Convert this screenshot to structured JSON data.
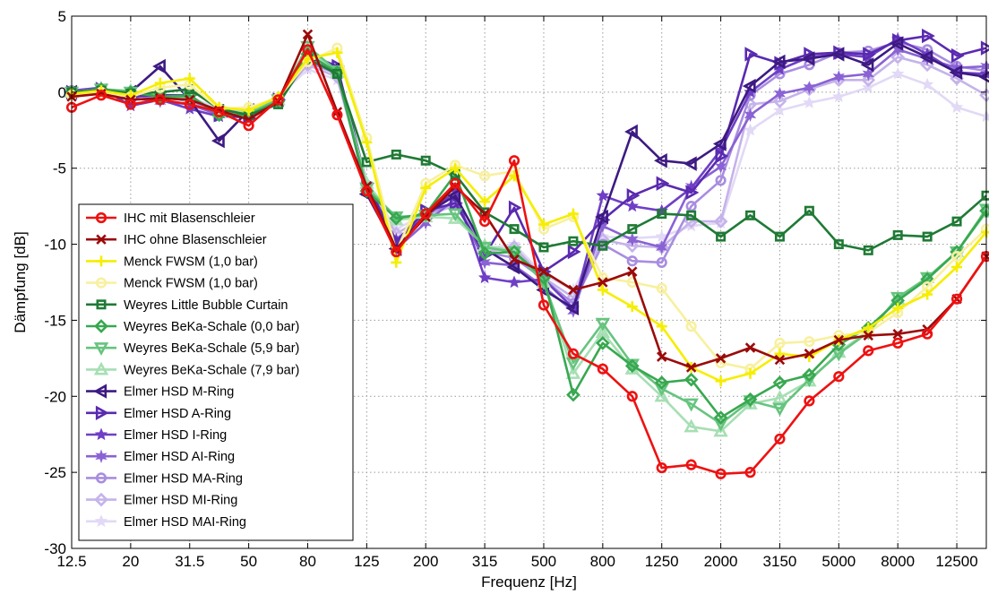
{
  "chart_data": {
    "type": "line",
    "xlabel": "Frequenz [Hz]",
    "ylabel": "Dämpfung [dB]",
    "ylim": [
      -30,
      5
    ],
    "y_ticks": [
      "5",
      "0",
      "-5",
      "-10",
      "-15",
      "-20",
      "-25",
      "-30"
    ],
    "y_tick_values": [
      5,
      0,
      -5,
      -10,
      -15,
      -20,
      -25,
      -30
    ],
    "categories": [
      "12.5",
      "16",
      "20",
      "25",
      "31.5",
      "40",
      "50",
      "63",
      "80",
      "100",
      "125",
      "160",
      "200",
      "250",
      "315",
      "400",
      "500",
      "630",
      "800",
      "1000",
      "1250",
      "1600",
      "2000",
      "2500",
      "3150",
      "4000",
      "5000",
      "6300",
      "8000",
      "10000",
      "12500",
      "16000"
    ],
    "x_tick_labels": [
      "12.5",
      "20",
      "31.5",
      "50",
      "80",
      "125",
      "200",
      "315",
      "500",
      "800",
      "1250",
      "2000",
      "3150",
      "5000",
      "8000",
      "12500"
    ],
    "x_tick_indices": [
      0,
      2,
      4,
      6,
      8,
      10,
      12,
      14,
      16,
      18,
      20,
      22,
      24,
      26,
      28,
      30
    ],
    "grid": true,
    "legend_position": "left-middle",
    "series": [
      {
        "name": "IHC mit Blasenschleier",
        "color": "#ee1111",
        "marker": "circle",
        "values": [
          -1,
          -0.2,
          -0.8,
          -0.5,
          -0.8,
          -1.3,
          -2.2,
          -0.5,
          2.8,
          -1.5,
          -6.5,
          -10.5,
          -8,
          -6,
          -8.5,
          -4.5,
          -14,
          -17.2,
          -18.2,
          -20,
          -24.7,
          -24.5,
          -25.1,
          -25,
          -22.8,
          -20.3,
          -18.7,
          -17,
          -16.5,
          -15.9,
          -13.6,
          -10.8
        ]
      },
      {
        "name": "IHC ohne Blasenschleier",
        "color": "#9b0a0a",
        "marker": "x",
        "values": [
          -0.3,
          -0.1,
          -0.5,
          -0.4,
          -0.5,
          -1.2,
          -1.8,
          -0.6,
          3.8,
          -1.3,
          -6.2,
          -10.3,
          -8.2,
          -6.2,
          -8,
          -11,
          -11.8,
          -13,
          -12.5,
          -11.8,
          -17.4,
          -18.1,
          -17.5,
          -16.8,
          -17.6,
          -17.2,
          -16.3,
          -16,
          -15.9,
          -15.6,
          -13.6,
          -10.8
        ]
      },
      {
        "name": "Menck FWSM (1,0 bar)",
        "color": "#f5ee00",
        "marker": "plus",
        "values": [
          -0.1,
          0.1,
          -0.2,
          0.6,
          0.9,
          -1,
          -1.2,
          -0.3,
          2.2,
          2.6,
          -3.3,
          -11.2,
          -6.3,
          -5,
          -7.2,
          -5.5,
          -8.7,
          -8,
          -13,
          -14.1,
          -15.4,
          -18.1,
          -19,
          -18.5,
          -17.2,
          -17.4,
          -16.3,
          -15.5,
          -14.2,
          -13.3,
          -11.5,
          -9.2
        ]
      },
      {
        "name": "Menck FWSM (1,0 bar)",
        "color": "#f8f0a0",
        "marker": "circle",
        "values": [
          -0.2,
          0,
          -0.3,
          0.3,
          0.5,
          -1.1,
          -1,
          -0.4,
          2,
          2.9,
          -3,
          -10.5,
          -6,
          -4.8,
          -5.5,
          -5.2,
          -9,
          -8.2,
          -12.2,
          -12.5,
          -12.9,
          -15.4,
          -17.8,
          -18.2,
          -16.5,
          -16.4,
          -16,
          -15.8,
          -14.5,
          -12.8,
          -10.8,
          -9
        ]
      },
      {
        "name": "Weyres Little Bubble Curtain",
        "color": "#1f7a35",
        "marker": "square",
        "values": [
          0,
          0.1,
          -0.1,
          0,
          0.2,
          -1.1,
          -1.5,
          -0.8,
          2.2,
          1.2,
          -4.6,
          -4.1,
          -4.5,
          -5.4,
          -7.9,
          -9,
          -10.2,
          -9.8,
          -10.1,
          -9,
          -8,
          -8.1,
          -9.5,
          -8.1,
          -9.5,
          -7.8,
          -10,
          -10.4,
          -9.4,
          -9.5,
          -8.5,
          -6.8
        ]
      },
      {
        "name": "Weyres BeKa-Schale (0,0 bar)",
        "color": "#38a850",
        "marker": "diamond",
        "values": [
          0,
          0.2,
          0,
          -0.3,
          -0.2,
          -1.5,
          -1.5,
          -0.6,
          2.5,
          1.3,
          -6.5,
          -8.3,
          -8,
          -5.4,
          -10.6,
          -10.5,
          -12.2,
          -19.9,
          -16.5,
          -18,
          -19.1,
          -18.9,
          -21.4,
          -20.2,
          -19.1,
          -18.6,
          -16.6,
          -15.5,
          -13.7,
          -12.3,
          -10.5,
          -7.8
        ]
      },
      {
        "name": "Weyres BeKa-Schale (5,9 bar)",
        "color": "#66c47e",
        "marker": "triangle-down",
        "values": [
          0,
          0.2,
          0,
          -0.3,
          -0.3,
          -1.4,
          -1.4,
          -0.5,
          3,
          1.4,
          -6.3,
          -8.2,
          -8.1,
          -8,
          -10.2,
          -10.5,
          -12.5,
          -17.8,
          -15.2,
          -17.9,
          -19.5,
          -20.5,
          -21.8,
          -20.3,
          -20.8,
          -18.9,
          -17.2,
          -15.8,
          -13.5,
          -12.2,
          -10.5,
          -7.7
        ]
      },
      {
        "name": "Weyres BeKa-Schale (7,9 bar)",
        "color": "#a6dfb3",
        "marker": "triangle-up",
        "values": [
          0,
          0.2,
          0.1,
          -0.3,
          -0.3,
          -1.3,
          -1.3,
          -0.5,
          2.8,
          1.3,
          -6,
          -8.4,
          -8.2,
          -8.3,
          -10.1,
          -10.4,
          -12.5,
          -18.5,
          -15.8,
          -18.2,
          -20,
          -22,
          -22.3,
          -20.5,
          -20.1,
          -19,
          -17.1,
          -15.7,
          -13.6,
          -12.2,
          -10.5,
          -7.9
        ]
      },
      {
        "name": "Elmer HSD M-Ring",
        "color": "#3d1a82",
        "marker": "triangle-left",
        "values": [
          0,
          0.1,
          0,
          1.7,
          -0.5,
          -3.2,
          -1.2,
          -0.5,
          2.3,
          1.6,
          -6.7,
          -10.3,
          -8,
          -6.8,
          -10.3,
          -11.5,
          -13,
          -14.2,
          -8.2,
          -2.6,
          -4.5,
          -4.7,
          -3.4,
          0.4,
          2,
          2.2,
          2.5,
          1.8,
          3.2,
          2.3,
          1.3,
          1
        ]
      },
      {
        "name": "Elmer HSD A-Ring",
        "color": "#5a2ab0",
        "marker": "triangle-right",
        "values": [
          0,
          0.2,
          -0.3,
          -0.2,
          -0.2,
          -1.5,
          -1.7,
          -0.5,
          2.5,
          1.7,
          -6,
          -9.8,
          -7.8,
          -7.3,
          -10.7,
          -7.6,
          -11.8,
          -10.5,
          -8.4,
          -6.8,
          -6,
          -6.6,
          -4.2,
          2.5,
          1.9,
          2.5,
          2.6,
          2.5,
          3.4,
          3.7,
          2.4,
          2.9
        ]
      },
      {
        "name": "Elmer HSD I-Ring",
        "color": "#6f3fc5",
        "marker": "star",
        "values": [
          0.1,
          0.3,
          -0.9,
          -0.5,
          -1.1,
          -1.6,
          -1.6,
          -0.5,
          2.4,
          1.5,
          -6.4,
          -9.7,
          -8.2,
          -6.5,
          -12.2,
          -12.5,
          -12.3,
          -14.2,
          -6.8,
          -7.5,
          -7.8,
          -6.3,
          -3.8,
          0,
          1.5,
          2.3,
          2.5,
          2.3,
          3.5,
          2.5,
          1.3,
          1.2
        ]
      },
      {
        "name": "Elmer HSD AI-Ring",
        "color": "#8a62d4",
        "marker": "star6",
        "values": [
          0.1,
          0.2,
          -0.4,
          -0.6,
          -0.8,
          -1.5,
          -1.6,
          -0.5,
          2,
          1.5,
          -6.6,
          -10.3,
          -8.6,
          -7,
          -11.2,
          -11.4,
          -12.8,
          -14.4,
          -8.8,
          -9.7,
          -10.2,
          -6.2,
          -4.9,
          -1.5,
          -0.1,
          0.3,
          1,
          1.2,
          2.8,
          2.2,
          1.6,
          1.7
        ]
      },
      {
        "name": "Elmer HSD MA-Ring",
        "color": "#a88de0",
        "marker": "circle",
        "values": [
          0.1,
          0.2,
          -0.1,
          -0.3,
          -0.6,
          -1.2,
          -1.5,
          -0.4,
          2,
          1.2,
          -6.2,
          -9.8,
          -8,
          -7.3,
          -10.5,
          -10.9,
          -12.3,
          -13.9,
          -10,
          -11.1,
          -11.2,
          -7.5,
          -5.8,
          -0.2,
          1.2,
          1.8,
          2.6,
          2.7,
          3.3,
          2.8,
          1.7,
          1.4
        ]
      },
      {
        "name": "Elmer HSD MI-Ring",
        "color": "#c5b3ea",
        "marker": "diamond",
        "values": [
          0,
          0.1,
          -0.2,
          -0.4,
          -0.5,
          -1.2,
          -1.3,
          -0.4,
          1.8,
          1,
          -6.1,
          -9.3,
          -8.2,
          -7.4,
          -10.5,
          -10.2,
          -12.2,
          -13.5,
          -9.7,
          -10.1,
          -10.2,
          -8.5,
          -8.5,
          -0.8,
          -0.6,
          0.2,
          0.8,
          0.8,
          2.3,
          1.8,
          0.9,
          -0.2
        ]
      },
      {
        "name": "Elmer HSD MAI-Ring",
        "color": "#e2d9f6",
        "marker": "star",
        "values": [
          0,
          0.1,
          -0.1,
          -0.3,
          -0.4,
          -1,
          -1.2,
          -0.3,
          1.5,
          0.8,
          -6,
          -9,
          -8,
          -7.5,
          -10.3,
          -10,
          -12,
          -13,
          -9.5,
          -9.6,
          -9.5,
          -8.8,
          -8.6,
          -2.5,
          -1.2,
          -0.7,
          -0.3,
          0.3,
          1.2,
          0.5,
          -1,
          -1.6
        ]
      }
    ]
  }
}
